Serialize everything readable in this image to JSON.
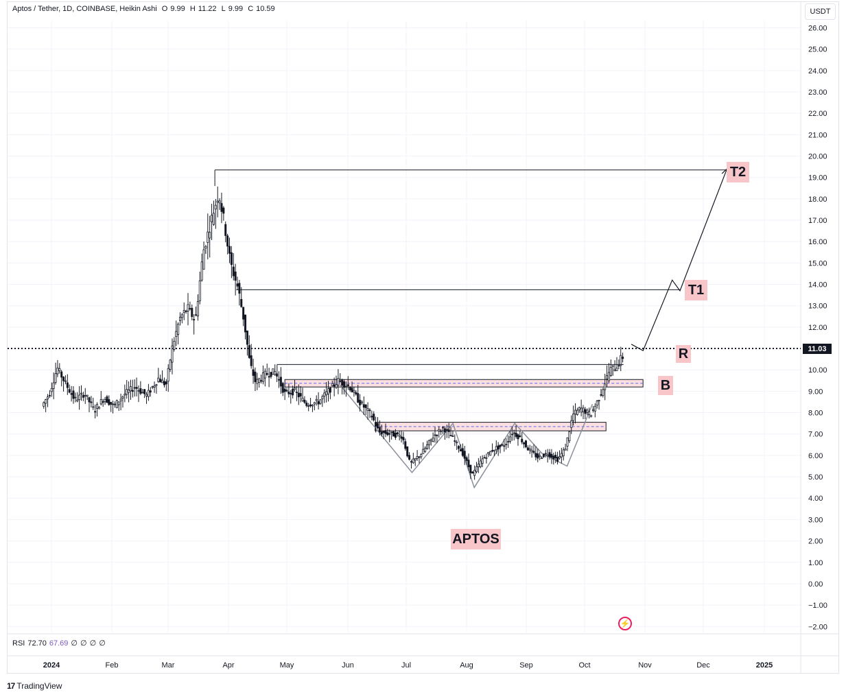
{
  "header": {
    "symbol": "Aptos / Tether, 1D, COINBASE, Heikin Ashi",
    "o_label": "O",
    "o_value": "9.99",
    "h_label": "H",
    "h_value": "11.22",
    "l_label": "L",
    "l_value": "9.99",
    "c_label": "C",
    "c_value": "10.59"
  },
  "currency": "USDT",
  "last_price": "11.03",
  "rsi": {
    "label": "RSI",
    "value": "72.70",
    "value2": "67.69",
    "z1": "∅",
    "z2": "∅",
    "z3": "∅",
    "z4": "∅"
  },
  "annotations": {
    "t2": "T2",
    "t1": "T1",
    "r": "R",
    "b": "B",
    "aptos": "APTOS"
  },
  "branding": "TradingView",
  "colors": {
    "zone_fill": "#f8c5c9",
    "label_bg": "#f8c5c9",
    "price_tag": "#131722",
    "rsi_value2": "#7e57c2"
  },
  "chart_data": {
    "type": "candlestick",
    "y_ticks": [
      "26.00",
      "25.00",
      "24.00",
      "23.00",
      "22.00",
      "21.00",
      "20.00",
      "19.00",
      "18.00",
      "17.00",
      "16.00",
      "15.00",
      "14.00",
      "13.00",
      "12.00",
      "11.00",
      "10.00",
      "9.00",
      "8.00",
      "7.00",
      "6.00",
      "5.00",
      "4.00",
      "3.00",
      "2.00",
      "1.00",
      "0.00",
      "−1.00",
      "−2.00"
    ],
    "x_ticks": [
      "2024",
      "Feb",
      "Mar",
      "Apr",
      "May",
      "Jun",
      "Jul",
      "Aug",
      "Sep",
      "Oct",
      "Nov",
      "Dec",
      "2025"
    ],
    "ylim": [
      -2.3,
      26.8
    ],
    "price_path": [
      [
        "Dec 28",
        8.3
      ],
      [
        "Jan 1",
        8.9
      ],
      [
        "Jan 5",
        10.1
      ],
      [
        "Jan 9",
        9.4
      ],
      [
        "Jan 14",
        8.6
      ],
      [
        "Jan 19",
        8.9
      ],
      [
        "Jan 24",
        8.1
      ],
      [
        "Jan 29",
        8.7
      ],
      [
        "Feb 3",
        8.3
      ],
      [
        "Feb 9",
        8.9
      ],
      [
        "Feb 14",
        9.2
      ],
      [
        "Feb 20",
        8.8
      ],
      [
        "Feb 26",
        9.6
      ],
      [
        "Mar 1",
        9.3
      ],
      [
        "Mar 4",
        11.0
      ],
      [
        "Mar 8",
        12.4
      ],
      [
        "Mar 12",
        12.9
      ],
      [
        "Mar 16",
        12.3
      ],
      [
        "Mar 20",
        15.5
      ],
      [
        "Mar 25",
        17.3
      ],
      [
        "Mar 28",
        18.3
      ],
      [
        "Mar 31",
        16.8
      ],
      [
        "Apr 3",
        15.0
      ],
      [
        "Apr 7",
        13.8
      ],
      [
        "Apr 10",
        12.3
      ],
      [
        "Apr 13",
        10.3
      ],
      [
        "Apr 16",
        9.4
      ],
      [
        "Apr 21",
        9.8
      ],
      [
        "Apr 26",
        9.9
      ],
      [
        "May 1",
        8.9
      ],
      [
        "May 6",
        9.0
      ],
      [
        "May 12",
        8.4
      ],
      [
        "May 18",
        8.5
      ],
      [
        "May 23",
        9.0
      ],
      [
        "May 28",
        9.5
      ],
      [
        "Jun 3",
        9.2
      ],
      [
        "Jun 8",
        8.5
      ],
      [
        "Jun 14",
        7.9
      ],
      [
        "Jun 18",
        7.1
      ],
      [
        "Jun 24",
        7.0
      ],
      [
        "Jun 30",
        6.9
      ],
      [
        "Jul 4",
        5.6
      ],
      [
        "Jul 10",
        6.1
      ],
      [
        "Jul 16",
        6.9
      ],
      [
        "Jul 21",
        7.3
      ],
      [
        "Jul 26",
        6.8
      ],
      [
        "Jul 31",
        6.1
      ],
      [
        "Aug 5",
        5.1
      ],
      [
        "Aug 10",
        5.8
      ],
      [
        "Aug 16",
        6.3
      ],
      [
        "Aug 22",
        6.5
      ],
      [
        "Aug 26",
        7.1
      ],
      [
        "Aug 30",
        6.8
      ],
      [
        "Sep 3",
        6.3
      ],
      [
        "Sep 8",
        5.9
      ],
      [
        "Sep 13",
        6.1
      ],
      [
        "Sep 18",
        5.8
      ],
      [
        "Sep 22",
        6.3
      ],
      [
        "Sep 26",
        7.9
      ],
      [
        "Sep 30",
        8.2
      ],
      [
        "Oct 5",
        7.9
      ],
      [
        "Oct 9",
        8.6
      ],
      [
        "Oct 12",
        9.3
      ],
      [
        "Oct 15",
        10.0
      ],
      [
        "Oct 19",
        10.2
      ],
      [
        "Oct 21",
        10.6
      ]
    ],
    "horizontal_levels": [
      {
        "name": "T2 level",
        "value": 19.35,
        "from": "Mar 25",
        "to": "Dec 16"
      },
      {
        "name": "T1 level",
        "value": 13.75,
        "from": "Apr 5",
        "to": "Nov 19"
      },
      {
        "name": "R level",
        "value": 11.0,
        "from": "Jan 1",
        "to": "Nov 3",
        "style": "dotted"
      },
      {
        "name": "neckline",
        "value": 10.25,
        "from": "Apr 26",
        "to": "Oct 21"
      }
    ],
    "zones": [
      {
        "label": "B",
        "low": 9.2,
        "high": 9.55,
        "from": "Apr 30",
        "to": "Oct 31"
      },
      {
        "name": "lower zone",
        "low": 7.15,
        "high": 7.55,
        "from": "Jun 15",
        "to": "Oct 12"
      }
    ],
    "projection_path": [
      [
        "Oct 25",
        11.2
      ],
      [
        "Oct 31",
        10.9
      ],
      [
        "Nov 15",
        14.2
      ],
      [
        "Nov 19",
        13.7
      ],
      [
        "Dec 13",
        19.4
      ]
    ],
    "pattern_lines": [
      [
        [
          "May 28",
          9.3
        ],
        [
          "Jul 4",
          5.2
        ],
        [
          "Jul 25",
          7.5
        ],
        [
          "Aug 5",
          4.5
        ],
        [
          "Aug 26",
          7.5
        ],
        [
          "Sep 9",
          6.1
        ],
        [
          "Sep 22",
          5.5
        ],
        [
          "Oct 5",
          8.4
        ]
      ]
    ]
  }
}
